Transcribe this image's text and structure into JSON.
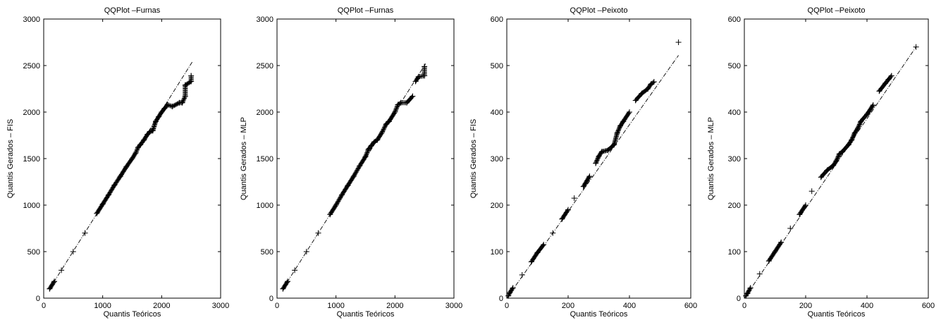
{
  "chart_data": [
    {
      "type": "scatter",
      "title": "QQPlot –Furnas",
      "xlabel": "Quantis Teóricos",
      "ylabel": "Quantis Gerados – FIS",
      "xlim": [
        0,
        3000
      ],
      "ylim": [
        0,
        3000
      ],
      "xticks": [
        "0",
        "1000",
        "2000",
        "3000"
      ],
      "yticks": [
        "0",
        "500",
        "1000",
        "1500",
        "2000",
        "2500",
        "3000"
      ],
      "reference_line": {
        "x": [
          100,
          2520
        ],
        "y": [
          100,
          2540
        ]
      },
      "series": [
        {
          "marker": "+",
          "points": [
            [
              100,
              100
            ],
            [
              180,
              180
            ],
            [
              300,
              300
            ],
            [
              500,
              500
            ],
            [
              700,
              700
            ],
            [
              900,
              910
            ],
            [
              1000,
              1010
            ],
            [
              1100,
              1110
            ],
            [
              1200,
              1215
            ],
            [
              1300,
              1310
            ],
            [
              1400,
              1410
            ],
            [
              1500,
              1500
            ],
            [
              1560,
              1560
            ],
            [
              1600,
              1620
            ],
            [
              1640,
              1650
            ],
            [
              1700,
              1700
            ],
            [
              1760,
              1760
            ],
            [
              1800,
              1790
            ],
            [
              1850,
              1800
            ],
            [
              1900,
              1900
            ],
            [
              1950,
              1950
            ],
            [
              2000,
              2000
            ],
            [
              2050,
              2040
            ],
            [
              2100,
              2080
            ],
            [
              2180,
              2060
            ],
            [
              2300,
              2100
            ],
            [
              2350,
              2100
            ],
            [
              2400,
              2170
            ],
            [
              2400,
              2290
            ],
            [
              2500,
              2330
            ],
            [
              2500,
              2390
            ]
          ]
        }
      ]
    },
    {
      "type": "scatter",
      "title": "QQPlot –Furnas",
      "xlabel": "Quantis Teóricos",
      "ylabel": "Quantis Gerados – MLP",
      "xlim": [
        0,
        3000
      ],
      "ylim": [
        0,
        3000
      ],
      "xticks": [
        "0",
        "1000",
        "2000",
        "3000"
      ],
      "yticks": [
        "0",
        "500",
        "1000",
        "1500",
        "2000",
        "2500",
        "3000"
      ],
      "reference_line": {
        "x": [
          100,
          2520
        ],
        "y": [
          100,
          2520
        ]
      },
      "series": [
        {
          "marker": "+",
          "points": [
            [
              100,
              100
            ],
            [
              180,
              180
            ],
            [
              300,
              300
            ],
            [
              500,
              500
            ],
            [
              700,
              700
            ],
            [
              900,
              900
            ],
            [
              1000,
              1000
            ],
            [
              1100,
              1110
            ],
            [
              1200,
              1210
            ],
            [
              1300,
              1310
            ],
            [
              1400,
              1420
            ],
            [
              1500,
              1520
            ],
            [
              1550,
              1600
            ],
            [
              1600,
              1640
            ],
            [
              1650,
              1680
            ],
            [
              1700,
              1700
            ],
            [
              1780,
              1780
            ],
            [
              1850,
              1870
            ],
            [
              1900,
              1900
            ],
            [
              2000,
              2000
            ],
            [
              2050,
              2080
            ],
            [
              2100,
              2100
            ],
            [
              2200,
              2100
            ],
            [
              2300,
              2170
            ],
            [
              2350,
              2330
            ],
            [
              2400,
              2380
            ],
            [
              2500,
              2390
            ],
            [
              2500,
              2490
            ]
          ]
        }
      ]
    },
    {
      "type": "scatter",
      "title": "QQPlot –Peixoto",
      "xlabel": "Quantis Teóricos",
      "ylabel": "Quantis Gerados – FIS",
      "xlim": [
        0,
        600
      ],
      "ylim": [
        0,
        600
      ],
      "xticks": [
        "0",
        "200",
        "400",
        "600"
      ],
      "yticks": [
        "0",
        "100",
        "200",
        "300",
        "400",
        "500",
        "600"
      ],
      "reference_line": {
        "x": [
          0,
          560
        ],
        "y": [
          0,
          522
        ]
      },
      "series": [
        {
          "marker": "+",
          "points": [
            [
              5,
              5
            ],
            [
              10,
              12
            ],
            [
              20,
              22
            ],
            [
              50,
              50
            ],
            [
              80,
              78
            ],
            [
              100,
              98
            ],
            [
              120,
              115
            ],
            [
              150,
              140
            ],
            [
              180,
              170
            ],
            [
              200,
              190
            ],
            [
              220,
              215
            ],
            [
              250,
              240
            ],
            [
              270,
              262
            ],
            [
              290,
              290
            ],
            [
              300,
              305
            ],
            [
              310,
              315
            ],
            [
              330,
              318
            ],
            [
              350,
              330
            ],
            [
              360,
              355
            ],
            [
              370,
              370
            ],
            [
              380,
              380
            ],
            [
              400,
              400
            ],
            [
              420,
              425
            ],
            [
              440,
              440
            ],
            [
              460,
              450
            ],
            [
              470,
              460
            ],
            [
              480,
              465
            ],
            [
              560,
              550
            ]
          ]
        }
      ]
    },
    {
      "type": "scatter",
      "title": "QQPlot –Peixoto",
      "xlabel": "Quantis Teóricos",
      "ylabel": "Quantis Gerados – MLP",
      "xlim": [
        0,
        600
      ],
      "ylim": [
        0,
        600
      ],
      "xticks": [
        "0",
        "200",
        "400",
        "600"
      ],
      "yticks": [
        "0",
        "100",
        "200",
        "300",
        "400",
        "500",
        "600"
      ],
      "reference_line": {
        "x": [
          0,
          560
        ],
        "y": [
          0,
          540
        ]
      },
      "series": [
        {
          "marker": "+",
          "points": [
            [
              5,
              5
            ],
            [
              10,
              10
            ],
            [
              20,
              22
            ],
            [
              50,
              52
            ],
            [
              80,
              80
            ],
            [
              100,
              100
            ],
            [
              120,
              120
            ],
            [
              150,
              150
            ],
            [
              180,
              180
            ],
            [
              200,
              200
            ],
            [
              220,
              230
            ],
            [
              250,
              260
            ],
            [
              270,
              275
            ],
            [
              290,
              285
            ],
            [
              300,
              295
            ],
            [
              310,
              310
            ],
            [
              320,
              315
            ],
            [
              340,
              330
            ],
            [
              350,
              340
            ],
            [
              360,
              355
            ],
            [
              370,
              365
            ],
            [
              380,
              380
            ],
            [
              400,
              395
            ],
            [
              420,
              415
            ],
            [
              440,
              445
            ],
            [
              460,
              462
            ],
            [
              470,
              470
            ],
            [
              480,
              478
            ],
            [
              560,
              540
            ]
          ]
        }
      ]
    }
  ]
}
